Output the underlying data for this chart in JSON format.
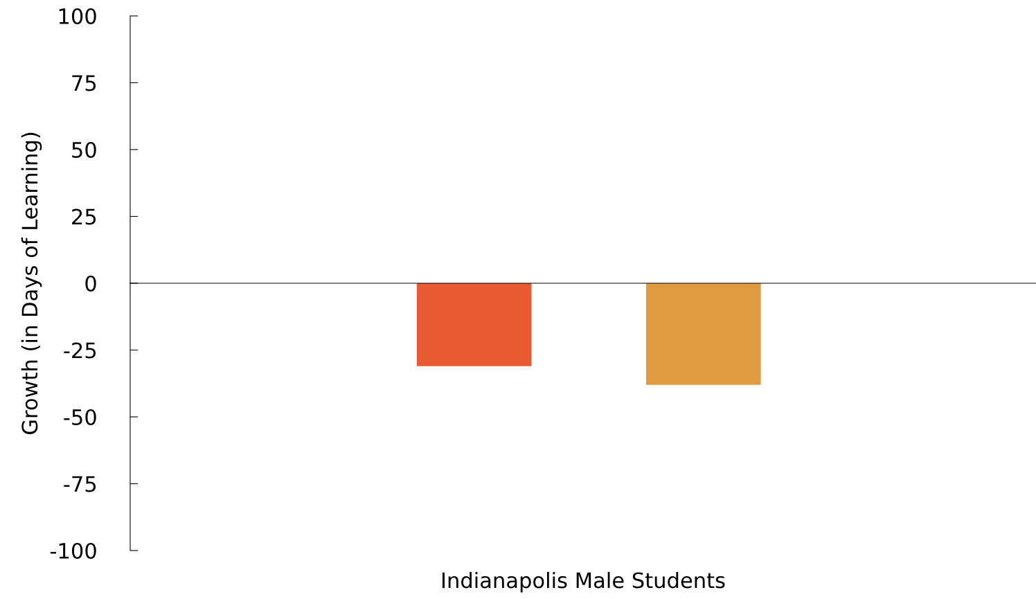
{
  "chart_data": {
    "type": "bar",
    "categories": [
      null,
      null
    ],
    "colors": [
      "#e85a31",
      "#e09a3f"
    ],
    "values": [
      -31,
      -38
    ],
    "xlabel": "Indianapolis Male Students",
    "ylabel": "Growth (in Days of Learning)",
    "ylim": [
      -100,
      100
    ],
    "yticks": [
      -100,
      -75,
      -50,
      -25,
      0,
      25,
      50,
      75,
      100
    ],
    "legend": false
  }
}
